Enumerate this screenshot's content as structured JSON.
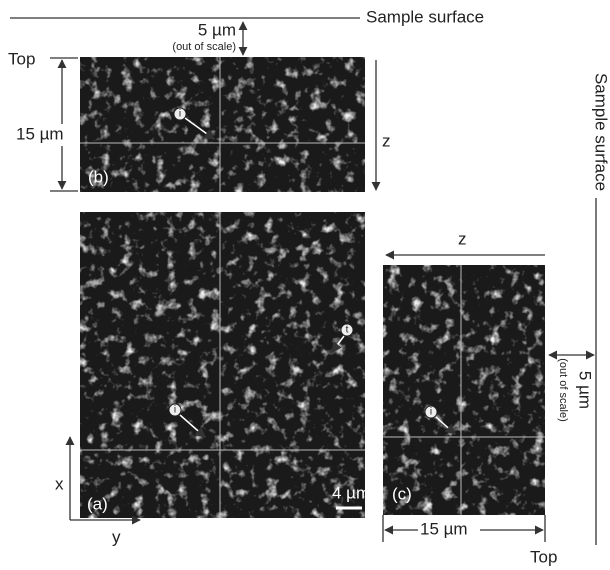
{
  "labels": {
    "sample_surface_top": "Sample surface",
    "gap_top": "5 µm",
    "gap_top_note": "(out of scale)",
    "top_left": "Top",
    "depth_left": "15 µm",
    "panel_b": "(b)",
    "z_right_b": "z",
    "sample_surface_right": "Sample surface",
    "z_top_c": "z",
    "panel_a": "(a)",
    "scale_a": "4 µm",
    "panel_c": "(c)",
    "axis_x": "x",
    "axis_y": "y",
    "gap_right": "5 µm",
    "gap_right_note": "(out of scale)",
    "depth_bottom": "15 µm",
    "top_bottom": "Top",
    "marker_b": "i",
    "marker_a_t": "t",
    "marker_a_i": "i",
    "marker_c": "i"
  }
}
